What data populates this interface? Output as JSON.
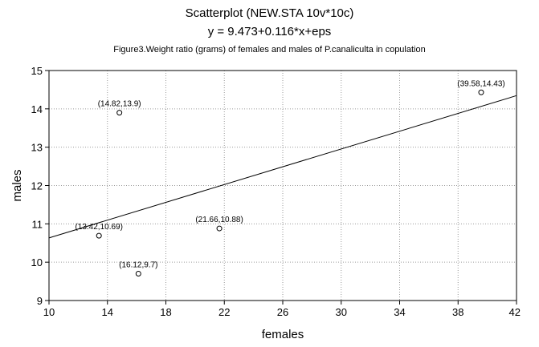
{
  "chart_data": {
    "type": "scatter",
    "title": "Scatterplot (NEW.STA 10v*10c)",
    "subtitle": "y = 9.473+0.116*x+eps",
    "caption": "Figure3.Weight ratio (grams) of females and males of P.canaliculta in copulation",
    "xlabel": "females",
    "ylabel": "males",
    "xlim": [
      10,
      42
    ],
    "ylim": [
      9,
      15
    ],
    "xticks": [
      10,
      14,
      18,
      22,
      26,
      30,
      34,
      38,
      42
    ],
    "yticks": [
      9,
      10,
      11,
      12,
      13,
      14,
      15
    ],
    "grid": true,
    "series": [
      {
        "x": [
          13.42,
          14.82,
          16.12,
          21.66,
          39.58
        ],
        "y": [
          10.69,
          13.9,
          9.7,
          10.88,
          14.43
        ],
        "labels": [
          "(13.42,10.69)",
          "(14.82,13.9)",
          "(16.12,9.7)",
          "(21.66,10.88)",
          "(39.58,14.43)"
        ]
      }
    ],
    "fit_line": {
      "intercept": 9.473,
      "slope": 0.116
    }
  }
}
